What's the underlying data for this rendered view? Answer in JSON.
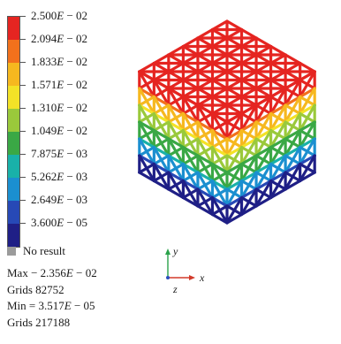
{
  "legend": {
    "labels": [
      {
        "mantissa": "2.500",
        "exp": "E",
        "rest": " − 02"
      },
      {
        "mantissa": "2.094",
        "exp": "E",
        "rest": " − 02"
      },
      {
        "mantissa": "1.833",
        "exp": "E",
        "rest": " − 02"
      },
      {
        "mantissa": "1.571",
        "exp": "E",
        "rest": " − 02"
      },
      {
        "mantissa": "1.310",
        "exp": "E",
        "rest": " − 02"
      },
      {
        "mantissa": "1.049",
        "exp": "E",
        "rest": " − 02"
      },
      {
        "mantissa": "7.875",
        "exp": "E",
        "rest": " − 03"
      },
      {
        "mantissa": "5.262",
        "exp": "E",
        "rest": " − 03"
      },
      {
        "mantissa": "2.649",
        "exp": "E",
        "rest": " − 03"
      },
      {
        "mantissa": "3.600",
        "exp": "E",
        "rest": " − 05"
      }
    ],
    "colors": [
      "#e52521",
      "#f2711c",
      "#f6b81f",
      "#f3e227",
      "#9ac93b",
      "#3aa845",
      "#19b1a9",
      "#1b8fd0",
      "#2749b6",
      "#1f1f86"
    ]
  },
  "no_result": {
    "label": "No result",
    "color": "#9b9b9b"
  },
  "stats": {
    "max_prefix": "Max − 2.356",
    "max_exp": "E",
    "max_suffix": " − 02",
    "max_grids": "Grids 82752",
    "min_prefix": "Min = 3.517",
    "min_exp": "E",
    "min_suffix": " − 05",
    "min_grids": "Grids 217188"
  },
  "axes": {
    "y": "y",
    "x": "x",
    "z": "z",
    "y_color": "#2aa24a",
    "x_color": "#d23a2a",
    "z_color": "#2b4fbf"
  }
}
